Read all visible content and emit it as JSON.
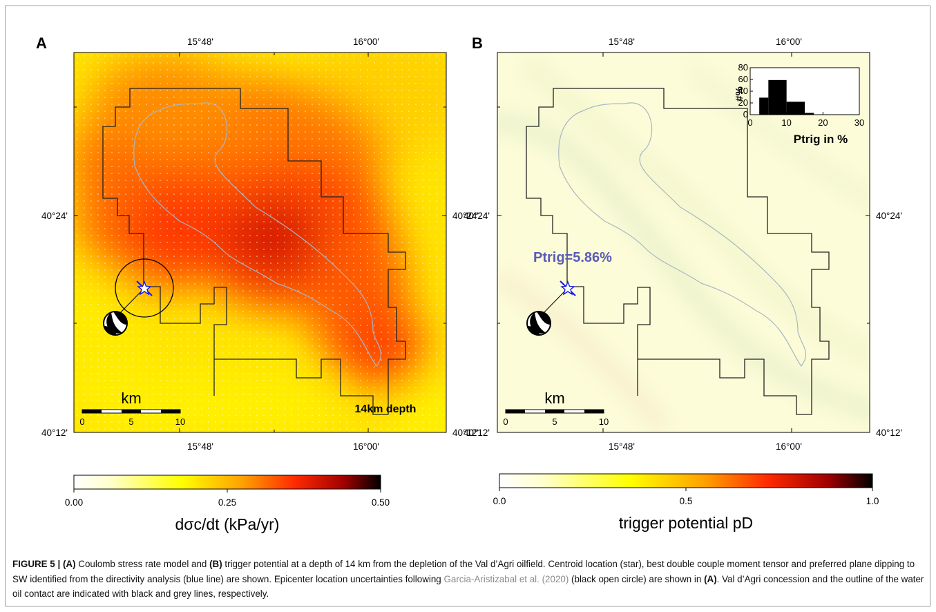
{
  "figure": {
    "panels": [
      {
        "letter": "A",
        "lon_labels": [
          "15°48'",
          "16°00'"
        ],
        "lat_labels": [
          "40°24'",
          "40°12'"
        ],
        "scalebar": {
          "unit": "km",
          "ticks": [
            "0",
            "5",
            "10"
          ]
        },
        "depth_label": "14km depth",
        "colorbar": {
          "ticks": [
            "0.00",
            "0.25",
            "0.50"
          ],
          "stops": [
            "#ffffff",
            "#ffff00",
            "#ff9a00",
            "#ff2a00",
            "#a00000",
            "#000000"
          ],
          "label": "dσc/dt (kPa/yr)"
        }
      },
      {
        "letter": "B",
        "lon_labels": [
          "15°48'",
          "16°00'"
        ],
        "lat_labels": [
          "40°24'",
          "40°12'"
        ],
        "scalebar": {
          "unit": "km",
          "ticks": [
            "0",
            "5",
            "10"
          ]
        },
        "ptrig_label": "Ptrig=5.86%",
        "colorbar": {
          "ticks": [
            "0.0",
            "0.5",
            "1.0"
          ],
          "stops": [
            "#ffffff",
            "#ffff00",
            "#ff9a00",
            "#ff2a00",
            "#a00000",
            "#000000"
          ],
          "label": "trigger potential pD"
        }
      }
    ]
  },
  "chart_data": {
    "type": "bar",
    "title": "",
    "xlabel": "Ptrig in %",
    "ylabel": "#%",
    "xlim": [
      0,
      30
    ],
    "ylim": [
      0,
      80
    ],
    "x_ticks": [
      "0",
      "10",
      "20",
      "30"
    ],
    "y_ticks": [
      "0",
      "20",
      "40",
      "60",
      "80"
    ],
    "bins": [
      [
        2.5,
        5
      ],
      [
        5,
        10
      ],
      [
        10,
        15
      ],
      [
        15,
        17.5
      ]
    ],
    "values": [
      29,
      59,
      22,
      3
    ]
  },
  "caption": {
    "fig_label": "FIGURE 5 |",
    "a_tag": "(A)",
    "t1": " Coulomb stress rate model and ",
    "b_tag": "(B)",
    "t2": " trigger potential at a depth of 14 km from the depletion of the Val d’Agri oilfield. Centroid location (star), best double couple moment tensor and preferred plane dipping to SW identified from the directivity analysis (blue line) are shown. Epicenter location uncertainties following ",
    "ref": "Garcia-Aristizabal et al. (2020)",
    "t3": " (black open circle) are shown in ",
    "a_tag2": "(A)",
    "t4": ". Val d’Agri concession and the outline of the water oil contact are indicated with black and grey lines, respectively."
  },
  "colors": {
    "concession": "#222222",
    "owc": "#a9b6c4",
    "directivity": "#1a1ae0",
    "ptrig": "#5a5ab8"
  }
}
